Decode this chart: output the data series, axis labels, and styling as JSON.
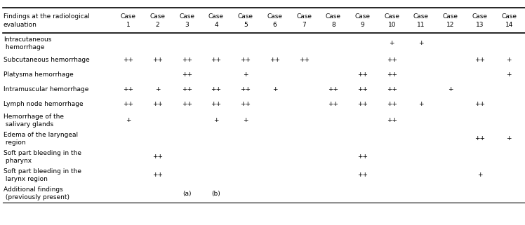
{
  "header_col1_line1": "Findings at the radiological",
  "header_col1_line2": "evaluation",
  "col_headers": [
    [
      "Case",
      "1"
    ],
    [
      "Case",
      "2"
    ],
    [
      "Case",
      "3"
    ],
    [
      "Case",
      "4"
    ],
    [
      "Case",
      "5"
    ],
    [
      "Case",
      "6"
    ],
    [
      "Case",
      "7"
    ],
    [
      "Case",
      "8"
    ],
    [
      "Case",
      "9"
    ],
    [
      "Case",
      "10"
    ],
    [
      "Case",
      "11"
    ],
    [
      "Case",
      "12"
    ],
    [
      "Case",
      "13"
    ],
    [
      "Case",
      "14"
    ]
  ],
  "rows": [
    {
      "label": [
        "Intracutaneous",
        " hemorrhage"
      ],
      "values": [
        "",
        "",
        "",
        "",
        "",
        "",
        "",
        "",
        "",
        "+",
        "+",
        "",
        "",
        ""
      ]
    },
    {
      "label": [
        "Subcutaneous hemorrhage"
      ],
      "values": [
        "++",
        "++",
        "++",
        "++",
        "++",
        "++",
        "++",
        "",
        "",
        "++",
        "",
        "",
        "++",
        "+"
      ]
    },
    {
      "label": [
        "Platysma hemorrhage"
      ],
      "values": [
        "",
        "",
        "++",
        "",
        "+",
        "",
        "",
        "",
        "++",
        "++",
        "",
        "",
        "",
        "+"
      ]
    },
    {
      "label": [
        "Intramuscular hemorrhage"
      ],
      "values": [
        "++",
        "+",
        "++",
        "++",
        "++",
        "+",
        "",
        "++",
        "++",
        "++",
        "",
        "+",
        "",
        ""
      ]
    },
    {
      "label": [
        "Lymph node hemorrhage"
      ],
      "values": [
        "++",
        "++",
        "++",
        "++",
        "++",
        "",
        "",
        "++",
        "++",
        "++",
        "+",
        "",
        "++",
        ""
      ]
    },
    {
      "label": [
        "Hemorrhage of the",
        " salivary glands"
      ],
      "values": [
        "+",
        "",
        "",
        "+",
        "+",
        "",
        "",
        "",
        "",
        "++",
        "",
        "",
        "",
        ""
      ]
    },
    {
      "label": [
        "Edema of the laryngeal",
        " region"
      ],
      "values": [
        "",
        "",
        "",
        "",
        "",
        "",
        "",
        "",
        "",
        "",
        "",
        "",
        "++",
        "+"
      ]
    },
    {
      "label": [
        "Soft part bleeding in the",
        " pharynx"
      ],
      "values": [
        "",
        "++",
        "",
        "",
        "",
        "",
        "",
        "",
        "++",
        "",
        "",
        "",
        "",
        ""
      ]
    },
    {
      "label": [
        "Soft part bleeding in the",
        " larynx region"
      ],
      "values": [
        "",
        "++",
        "",
        "",
        "",
        "",
        "",
        "",
        "++",
        "",
        "",
        "",
        "+",
        ""
      ]
    },
    {
      "label": [
        "Additional findings",
        " (previously present)"
      ],
      "values": [
        "",
        "",
        "(a)",
        "(b)",
        "",
        "",
        "",
        "",
        "",
        "",
        "",
        "",
        "",
        ""
      ]
    }
  ],
  "font_size": 6.5,
  "bg_color": "#ffffff",
  "text_color": "#000000",
  "line_color": "#000000"
}
